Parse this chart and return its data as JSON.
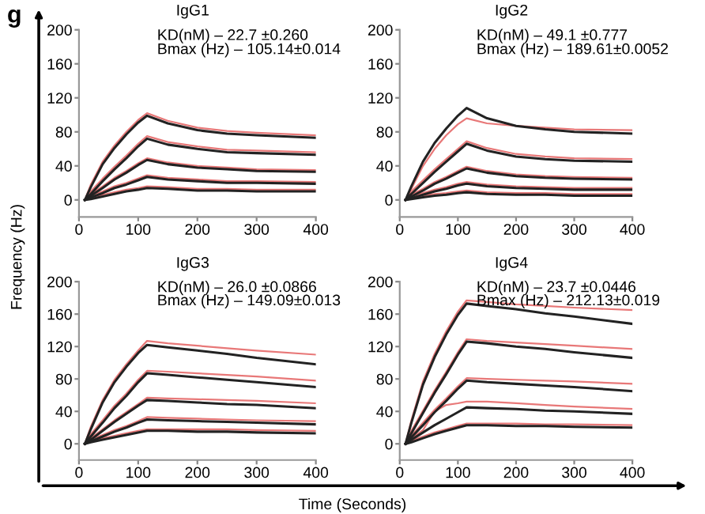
{
  "chart_data": [
    {
      "type": "line",
      "title": "IgG1",
      "annotations": [
        "g",
        "KD(nM) – 22.7 ±0.260",
        "Bmax (Hz) – 105.14±0.014"
      ],
      "ylabel": "Frequency (Hz)",
      "xlim": [
        0,
        400
      ],
      "ylim": [
        -20,
        200
      ],
      "xticks": [
        0,
        100,
        200,
        300,
        400
      ],
      "yticks": [
        0,
        40,
        80,
        120,
        160,
        200
      ],
      "grid": false,
      "line_style": "solid",
      "marker": "none",
      "x": [
        10,
        20,
        40,
        60,
        80,
        100,
        115,
        150,
        200,
        250,
        300,
        400
      ],
      "series": [
        {
          "color": "#e87878",
          "values": [
            0,
            18,
            45,
            64,
            80,
            94,
            102,
            93,
            85,
            81,
            79,
            76
          ]
        },
        {
          "color": "#e87878",
          "values": [
            0,
            10,
            25,
            39,
            52,
            66,
            75,
            68,
            63,
            59,
            58,
            56
          ]
        },
        {
          "color": "#e87878",
          "values": [
            0,
            7,
            16,
            26,
            34,
            43,
            49,
            44,
            40,
            38,
            36,
            35
          ]
        },
        {
          "color": "#e87878",
          "values": [
            0,
            5,
            10,
            16,
            20,
            25,
            29,
            26,
            24,
            22,
            22,
            21
          ]
        },
        {
          "color": "#e87878",
          "values": [
            0,
            3,
            6,
            9,
            12,
            14,
            16,
            15,
            13,
            13,
            12,
            12
          ]
        },
        {
          "color": "#222222",
          "values": [
            0,
            15,
            42,
            61,
            77,
            91,
            99,
            90,
            82,
            78,
            76,
            73
          ]
        },
        {
          "color": "#222222",
          "values": [
            0,
            7,
            22,
            36,
            49,
            63,
            72,
            65,
            60,
            56,
            55,
            53
          ]
        },
        {
          "color": "#222222",
          "values": [
            0,
            5,
            14,
            24,
            32,
            41,
            47,
            42,
            38,
            36,
            34,
            33
          ]
        },
        {
          "color": "#222222",
          "values": [
            0,
            3,
            8,
            14,
            18,
            23,
            27,
            24,
            22,
            20,
            20,
            19
          ]
        },
        {
          "color": "#222222",
          "values": [
            0,
            1,
            4,
            7,
            10,
            12,
            14,
            13,
            11,
            11,
            10,
            10
          ]
        }
      ]
    },
    {
      "type": "line",
      "title": "IgG2",
      "annotations": [
        "KD(nM) – 49.1 ±0.777",
        "Bmax (Hz) – 189.61±0.0052"
      ],
      "xlim": [
        0,
        400
      ],
      "ylim": [
        -20,
        200
      ],
      "xticks": [
        0,
        100,
        200,
        300,
        400
      ],
      "yticks": [
        0,
        40,
        80,
        120,
        160,
        200
      ],
      "grid": false,
      "line_style": "solid",
      "marker": "none",
      "x": [
        10,
        20,
        40,
        60,
        80,
        100,
        115,
        150,
        200,
        250,
        300,
        400
      ],
      "series": [
        {
          "color": "#e87878",
          "values": [
            0,
            13,
            40,
            60,
            76,
            89,
            96,
            90,
            87,
            85,
            83,
            82
          ]
        },
        {
          "color": "#e87878",
          "values": [
            0,
            10,
            23,
            36,
            48,
            60,
            69,
            61,
            54,
            51,
            49,
            48
          ]
        },
        {
          "color": "#e87878",
          "values": [
            0,
            6,
            13,
            21,
            27,
            34,
            39,
            34,
            30,
            28,
            27,
            26
          ]
        },
        {
          "color": "#e87878",
          "values": [
            0,
            4,
            8,
            12,
            15,
            19,
            21,
            18,
            16,
            15,
            14,
            14
          ]
        },
        {
          "color": "#e87878",
          "values": [
            0,
            3,
            5,
            7,
            8,
            10,
            11,
            9,
            8,
            8,
            7,
            7
          ]
        },
        {
          "color": "#222222",
          "values": [
            0,
            16,
            45,
            67,
            84,
            99,
            108,
            96,
            87,
            83,
            80,
            78
          ]
        },
        {
          "color": "#222222",
          "values": [
            0,
            7,
            20,
            33,
            45,
            57,
            66,
            58,
            51,
            48,
            46,
            45
          ]
        },
        {
          "color": "#222222",
          "values": [
            0,
            4,
            11,
            19,
            25,
            32,
            37,
            32,
            28,
            26,
            25,
            24
          ]
        },
        {
          "color": "#222222",
          "values": [
            0,
            2,
            6,
            10,
            13,
            17,
            19,
            16,
            14,
            13,
            12,
            12
          ]
        },
        {
          "color": "#222222",
          "values": [
            0,
            1,
            3,
            5,
            6,
            8,
            9,
            7,
            6,
            6,
            5,
            5
          ]
        }
      ]
    },
    {
      "type": "line",
      "title": "IgG3",
      "annotations": [
        "KD(nM) – 26.0 ±0.0866",
        "Bmax (Hz) – 149.09±0.013"
      ],
      "xlim": [
        0,
        400
      ],
      "ylim": [
        -20,
        200
      ],
      "xticks": [
        0,
        100,
        200,
        300,
        400
      ],
      "yticks": [
        0,
        40,
        80,
        120,
        160,
        200
      ],
      "grid": false,
      "line_style": "solid",
      "marker": "none",
      "x": [
        10,
        20,
        40,
        60,
        80,
        100,
        115,
        150,
        200,
        250,
        300,
        400
      ],
      "series": [
        {
          "color": "#e87878",
          "values": [
            0,
            21,
            54,
            79,
            98,
            115,
            127,
            124,
            121,
            118,
            115,
            110
          ]
        },
        {
          "color": "#e87878",
          "values": [
            0,
            12,
            29,
            47,
            62,
            79,
            90,
            89,
            87,
            85,
            83,
            78
          ]
        },
        {
          "color": "#e87878",
          "values": [
            0,
            7,
            18,
            29,
            39,
            49,
            57,
            56,
            55,
            54,
            53,
            50
          ]
        },
        {
          "color": "#e87878",
          "values": [
            0,
            5,
            11,
            17,
            22,
            28,
            33,
            32,
            31,
            30,
            29,
            28
          ]
        },
        {
          "color": "#e87878",
          "values": [
            0,
            4,
            7,
            10,
            13,
            16,
            18,
            18,
            18,
            18,
            17,
            16
          ]
        },
        {
          "color": "#222222",
          "values": [
            0,
            18,
            51,
            76,
            95,
            112,
            122,
            119,
            115,
            111,
            106,
            98
          ]
        },
        {
          "color": "#222222",
          "values": [
            0,
            9,
            26,
            44,
            59,
            76,
            87,
            85,
            82,
            79,
            76,
            70
          ]
        },
        {
          "color": "#222222",
          "values": [
            0,
            5,
            16,
            27,
            37,
            47,
            54,
            53,
            51,
            49,
            48,
            44
          ]
        },
        {
          "color": "#222222",
          "values": [
            0,
            3,
            9,
            15,
            20,
            26,
            30,
            29,
            28,
            27,
            26,
            24
          ]
        },
        {
          "color": "#222222",
          "values": [
            0,
            2,
            5,
            8,
            11,
            14,
            16,
            16,
            15,
            15,
            14,
            13
          ]
        }
      ]
    },
    {
      "type": "line",
      "title": "IgG4",
      "annotations": [
        "KD(nM) – 23.7 ±0.0446",
        "Bmax (Hz) – 212.13±0.019"
      ],
      "xlabel": "Time (Seconds)",
      "xlim": [
        0,
        400
      ],
      "ylim": [
        -20,
        200
      ],
      "xticks": [
        0,
        100,
        200,
        300,
        400
      ],
      "yticks": [
        0,
        40,
        80,
        120,
        160,
        200
      ],
      "grid": false,
      "line_style": "solid",
      "marker": "none",
      "x": [
        10,
        20,
        40,
        60,
        80,
        100,
        115,
        150,
        200,
        250,
        300,
        400
      ],
      "series": [
        {
          "color": "#e87878",
          "values": [
            0,
            29,
            77,
            111,
            139,
            163,
            177,
            175,
            172,
            170,
            168,
            165
          ]
        },
        {
          "color": "#e87878",
          "values": [
            0,
            16,
            41,
            66,
            89,
            113,
            129,
            127,
            125,
            123,
            121,
            117
          ]
        },
        {
          "color": "#e87878",
          "values": [
            0,
            10,
            26,
            42,
            56,
            71,
            81,
            80,
            79,
            78,
            77,
            74
          ]
        },
        {
          "color": "#e87878",
          "values": [
            0,
            7,
            17,
            40,
            48,
            50,
            52,
            52,
            50,
            48,
            46,
            43
          ]
        },
        {
          "color": "#e87878",
          "values": [
            0,
            4,
            9,
            14,
            18,
            22,
            25,
            25,
            25,
            24,
            24,
            23
          ]
        },
        {
          "color": "#222222",
          "values": [
            0,
            26,
            73,
            107,
            135,
            159,
            173,
            170,
            166,
            161,
            157,
            148
          ]
        },
        {
          "color": "#222222",
          "values": [
            0,
            13,
            38,
            63,
            86,
            110,
            126,
            124,
            120,
            117,
            113,
            106
          ]
        },
        {
          "color": "#222222",
          "values": [
            0,
            8,
            23,
            39,
            53,
            68,
            78,
            76,
            74,
            72,
            70,
            65
          ]
        },
        {
          "color": "#222222",
          "values": [
            0,
            5,
            14,
            23,
            31,
            39,
            45,
            44,
            43,
            41,
            40,
            37
          ]
        },
        {
          "color": "#222222",
          "values": [
            0,
            2,
            7,
            12,
            16,
            20,
            23,
            23,
            22,
            22,
            21,
            20
          ]
        }
      ]
    }
  ]
}
